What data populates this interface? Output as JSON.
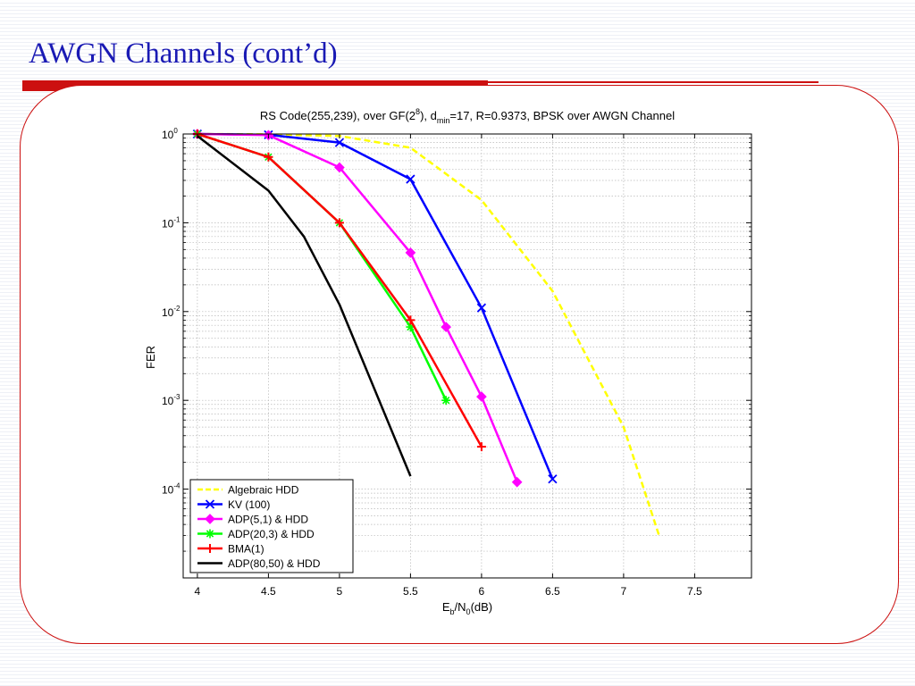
{
  "slide": {
    "title": "AWGN Channels (cont’d)"
  },
  "chart_data": {
    "type": "line",
    "title": "RS Code(255,239), over GF(2⁸), dmin=17, R=0.9373, BPSK over AWGN Channel",
    "title_parts": {
      "pre": "RS Code(255,239), over GF(2",
      "sup": "8",
      "mid": "), d",
      "sub": "min",
      "post": "=17, R=0.9373, BPSK over AWGN Channel"
    },
    "xlabel": "Eb/N0(dB)",
    "xlabel_parts": {
      "a": "E",
      "a_sub": "b",
      "b": "/N",
      "b_sub": "0",
      "c": "(dB)"
    },
    "ylabel": "FER",
    "x_scale": "linear",
    "y_scale": "log",
    "xlim": [
      3.9,
      7.9
    ],
    "ylim": [
      1e-05,
      1
    ],
    "x_ticks": [
      "4",
      "4.5",
      "5",
      "5.5",
      "6",
      "6.5",
      "7",
      "7.5"
    ],
    "y_ticks": [
      {
        "base": "10",
        "exp": "0"
      },
      {
        "base": "10",
        "exp": "-1"
      },
      {
        "base": "10",
        "exp": "-2"
      },
      {
        "base": "10",
        "exp": "-3"
      },
      {
        "base": "10",
        "exp": "-4"
      }
    ],
    "grid": true,
    "legend_position": "bottom-left",
    "series": [
      {
        "name": "Algebraic HDD",
        "color": "#ffff00",
        "dash": "dashed",
        "marker": "none",
        "x": [
          4,
          4.5,
          5,
          5.5,
          6,
          6.5,
          7,
          7.25
        ],
        "y": [
          1,
          0.99,
          0.95,
          0.7,
          0.18,
          0.017,
          0.0005,
          3e-05
        ]
      },
      {
        "name": "KV (100)",
        "color": "#0000ff",
        "dash": "solid",
        "marker": "x",
        "x": [
          4,
          4.5,
          5,
          5.5,
          6,
          6.5
        ],
        "y": [
          1,
          0.98,
          0.8,
          0.31,
          0.011,
          0.00013
        ]
      },
      {
        "name": "ADP(5,1) & HDD",
        "color": "#ff00ff",
        "dash": "solid",
        "marker": "diamond",
        "x": [
          4,
          4.5,
          5,
          5.5,
          5.75,
          6,
          6.25
        ],
        "y": [
          1,
          0.97,
          0.42,
          0.046,
          0.0067,
          0.0011,
          0.00012
        ]
      },
      {
        "name": "ADP(20,3) & HDD",
        "color": "#00ff00",
        "dash": "solid",
        "marker": "asterisk",
        "x": [
          4,
          4.5,
          5,
          5.5,
          5.75
        ],
        "y": [
          1,
          0.55,
          0.1,
          0.0067,
          0.001
        ]
      },
      {
        "name": "BMA(1)",
        "color": "#ff0000",
        "dash": "solid",
        "marker": "plus",
        "x": [
          4,
          4.5,
          5,
          5.5,
          6
        ],
        "y": [
          1,
          0.55,
          0.1,
          0.008,
          0.0003
        ]
      },
      {
        "name": "ADP(80,50) & HDD",
        "color": "#000000",
        "dash": "solid",
        "marker": "none",
        "x": [
          4,
          4.5,
          4.75,
          5,
          5.5
        ],
        "y": [
          0.95,
          0.23,
          0.07,
          0.012,
          0.00014
        ]
      }
    ]
  }
}
